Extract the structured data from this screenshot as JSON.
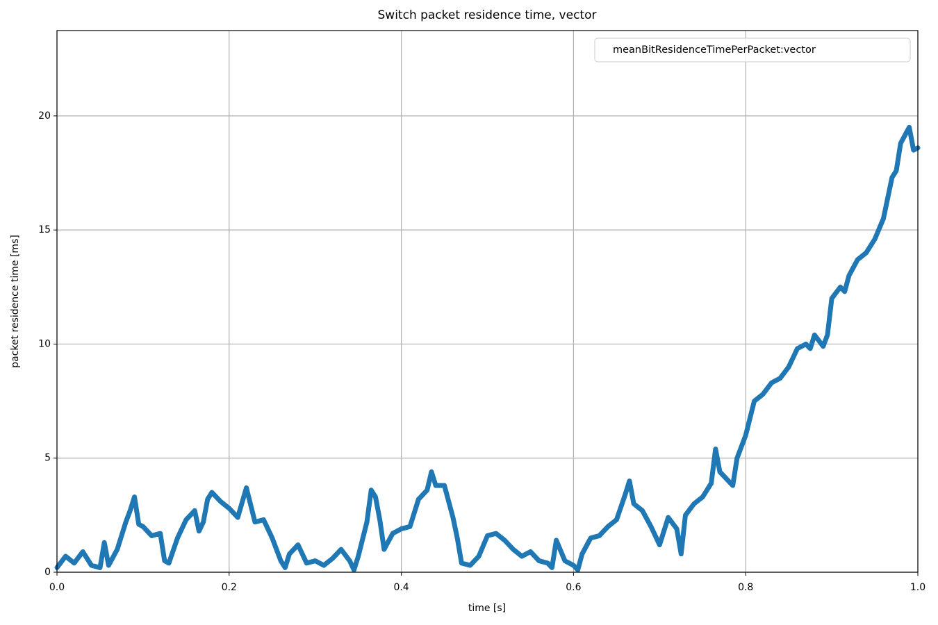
{
  "chart_data": {
    "type": "line",
    "title": "Switch packet residence time, vector",
    "x_label": "time [s]",
    "y_label": "packet residence time [ms]",
    "legend_position": "upper right",
    "grid": true,
    "xlim": [
      0,
      1
    ],
    "ylim": [
      0,
      23.74
    ],
    "xticks": [
      {
        "value": 0,
        "label": "0.0"
      },
      0.2,
      0.4,
      0.6,
      0.8,
      {
        "value": 1,
        "label": "1.0"
      }
    ],
    "yticks": [
      0,
      5,
      10,
      15,
      20
    ],
    "series": [
      {
        "name": "meanBitResidenceTimePerPacket:vector",
        "color": "#1f77b4",
        "x": [
          0,
          0.01,
          0.02,
          0.03,
          0.04,
          0.05,
          0.055,
          0.06,
          0.07,
          0.08,
          0.085,
          0.09,
          0.095,
          0.1,
          0.11,
          0.12,
          0.125,
          0.13,
          0.14,
          0.15,
          0.16,
          0.165,
          0.17,
          0.175,
          0.18,
          0.19,
          0.2,
          0.21,
          0.22,
          0.23,
          0.24,
          0.25,
          0.26,
          0.265,
          0.27,
          0.28,
          0.29,
          0.3,
          0.31,
          0.32,
          0.33,
          0.34,
          0.345,
          0.35,
          0.36,
          0.365,
          0.37,
          0.375,
          0.38,
          0.39,
          0.4,
          0.41,
          0.42,
          0.43,
          0.435,
          0.44,
          0.45,
          0.46,
          0.465,
          0.47,
          0.48,
          0.49,
          0.5,
          0.51,
          0.52,
          0.53,
          0.54,
          0.55,
          0.56,
          0.57,
          0.575,
          0.58,
          0.59,
          0.6,
          0.605,
          0.61,
          0.62,
          0.63,
          0.64,
          0.65,
          0.66,
          0.665,
          0.67,
          0.68,
          0.69,
          0.7,
          0.71,
          0.72,
          0.725,
          0.73,
          0.74,
          0.75,
          0.76,
          0.765,
          0.77,
          0.78,
          0.785,
          0.79,
          0.8,
          0.81,
          0.82,
          0.83,
          0.84,
          0.85,
          0.86,
          0.87,
          0.875,
          0.88,
          0.89,
          0.895,
          0.9,
          0.91,
          0.915,
          0.92,
          0.93,
          0.94,
          0.95,
          0.96,
          0.97,
          0.975,
          0.98,
          0.99,
          0.995,
          1
        ],
        "values": [
          0.2,
          0.7,
          0.4,
          0.9,
          0.3,
          0.2,
          1.3,
          0.3,
          1.0,
          2.2,
          2.7,
          3.3,
          2.1,
          2.0,
          1.6,
          1.7,
          0.5,
          0.4,
          1.5,
          2.3,
          2.7,
          1.8,
          2.2,
          3.2,
          3.5,
          3.1,
          2.8,
          2.4,
          3.7,
          2.2,
          2.3,
          1.5,
          0.5,
          0.2,
          0.8,
          1.2,
          0.4,
          0.5,
          0.3,
          0.6,
          1.0,
          0.5,
          0.1,
          0.7,
          2.2,
          3.6,
          3.3,
          2.3,
          1.0,
          1.7,
          1.9,
          2.0,
          3.2,
          3.6,
          4.4,
          3.8,
          3.8,
          2.4,
          1.5,
          0.4,
          0.3,
          0.7,
          1.6,
          1.7,
          1.4,
          1.0,
          0.7,
          0.9,
          0.5,
          0.4,
          0.2,
          1.4,
          0.5,
          0.3,
          0.1,
          0.8,
          1.5,
          1.6,
          2.0,
          2.3,
          3.4,
          4.0,
          3.0,
          2.7,
          2.0,
          1.2,
          2.4,
          1.9,
          0.8,
          2.5,
          3.0,
          3.3,
          3.9,
          5.4,
          4.4,
          4.0,
          3.8,
          5.0,
          6.0,
          7.5,
          7.8,
          8.3,
          8.5,
          9.0,
          9.8,
          10.0,
          9.8,
          10.4,
          9.9,
          10.4,
          12.0,
          12.5,
          12.3,
          13.0,
          13.7,
          14.0,
          14.6,
          15.5,
          17.3,
          17.6,
          18.8,
          19.5,
          18.5,
          18.6
        ]
      }
    ]
  }
}
